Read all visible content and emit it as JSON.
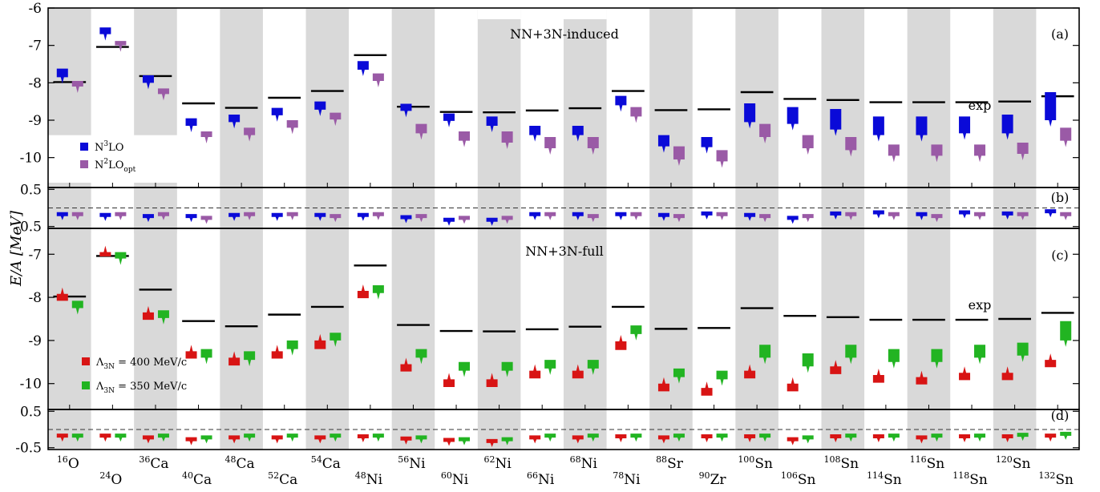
{
  "ylabel": "E/A  [MeV]",
  "nuclei": [
    {
      "mass": "16",
      "sym": "O"
    },
    {
      "mass": "24",
      "sym": "O"
    },
    {
      "mass": "36",
      "sym": "Ca"
    },
    {
      "mass": "40",
      "sym": "Ca"
    },
    {
      "mass": "48",
      "sym": "Ca"
    },
    {
      "mass": "52",
      "sym": "Ca"
    },
    {
      "mass": "54",
      "sym": "Ca"
    },
    {
      "mass": "48",
      "sym": "Ni"
    },
    {
      "mass": "56",
      "sym": "Ni"
    },
    {
      "mass": "60",
      "sym": "Ni"
    },
    {
      "mass": "62",
      "sym": "Ni"
    },
    {
      "mass": "66",
      "sym": "Ni"
    },
    {
      "mass": "68",
      "sym": "Ni"
    },
    {
      "mass": "78",
      "sym": "Ni"
    },
    {
      "mass": "88",
      "sym": "Sr"
    },
    {
      "mass": "90",
      "sym": "Zr"
    },
    {
      "mass": "100",
      "sym": "Sn"
    },
    {
      "mass": "106",
      "sym": "Sn"
    },
    {
      "mass": "108",
      "sym": "Sn"
    },
    {
      "mass": "114",
      "sym": "Sn"
    },
    {
      "mass": "116",
      "sym": "Sn"
    },
    {
      "mass": "118",
      "sym": "Sn"
    },
    {
      "mass": "120",
      "sym": "Sn"
    },
    {
      "mass": "132",
      "sym": "Sn"
    }
  ],
  "exp": [
    -7.98,
    -7.04,
    -7.82,
    -8.55,
    -8.67,
    -8.4,
    -8.22,
    -7.26,
    -8.64,
    -8.78,
    -8.79,
    -8.74,
    -8.68,
    -8.22,
    -8.73,
    -8.71,
    -8.25,
    -8.43,
    -8.46,
    -8.52,
    -8.52,
    -8.52,
    -8.5,
    -8.36
  ],
  "colors": {
    "n3lo": "#0a0ad8",
    "n2lo": "#9a5aa6",
    "red": "#d81414",
    "green": "#22b422",
    "shade": "#d9d9d9"
  },
  "panels": {
    "a": {
      "tag": "(a)",
      "title": "NN+3N-induced",
      "exp_label": "exp",
      "ymin": -10.8,
      "ymax": -6.0,
      "ticks": [
        "-6",
        "-7",
        "-8",
        "-9",
        "-10"
      ]
    },
    "b": {
      "tag": "(b)",
      "ticks": [
        "0.5",
        "-0.5"
      ]
    },
    "c": {
      "tag": "(c)",
      "title": "NN+3N-full",
      "exp_label": "exp",
      "ymin": -10.6,
      "ymax": -6.4,
      "ticks": [
        "-7",
        "-8",
        "-9",
        "-10"
      ]
    },
    "d": {
      "tag": "(d)",
      "ticks": [
        "0.5",
        "-0.5"
      ]
    }
  },
  "chart_data": [
    {
      "type": "scatter",
      "panel": "(a)",
      "title": "NN+3N-induced",
      "ylabel": "E/A [MeV]",
      "ylim": [
        -10.8,
        -6.0
      ],
      "categories": [
        "16O",
        "24O",
        "36Ca",
        "40Ca",
        "48Ca",
        "52Ca",
        "54Ca",
        "48Ni",
        "56Ni",
        "60Ni",
        "62Ni",
        "66Ni",
        "68Ni",
        "78Ni",
        "88Sr",
        "90Zr",
        "100Sn",
        "106Sn",
        "108Sn",
        "114Sn",
        "116Sn",
        "118Sn",
        "120Sn",
        "132Sn"
      ],
      "series": [
        {
          "name": "N3LO",
          "top": [
            -7.62,
            -6.52,
            -7.8,
            -8.95,
            -8.85,
            -8.67,
            -8.5,
            -7.42,
            -8.56,
            -8.82,
            -8.9,
            -9.15,
            -9.15,
            -8.35,
            -9.4,
            -9.45,
            -8.55,
            -8.65,
            -8.7,
            -8.9,
            -8.9,
            -8.9,
            -8.85,
            -8.25
          ],
          "bottom": [
            -7.85,
            -6.7,
            -8.0,
            -9.15,
            -9.05,
            -8.87,
            -8.72,
            -7.65,
            -8.75,
            -9.02,
            -9.15,
            -9.4,
            -9.4,
            -8.6,
            -9.7,
            -9.72,
            -9.05,
            -9.1,
            -9.25,
            -9.4,
            -9.4,
            -9.35,
            -9.35,
            -9.0
          ]
        },
        {
          "name": "N2LOopt",
          "top": [
            -7.95,
            -6.88,
            -8.15,
            -9.3,
            -9.2,
            -9.0,
            -8.8,
            -7.75,
            -9.1,
            -9.3,
            -9.3,
            -9.45,
            -9.45,
            -8.65,
            -9.7,
            -9.8,
            -9.1,
            -9.4,
            -9.45,
            -9.65,
            -9.65,
            -9.65,
            -9.6,
            -9.2
          ],
          "bottom": [
            -8.1,
            -7.0,
            -8.3,
            -9.45,
            -9.4,
            -9.2,
            -8.98,
            -7.95,
            -9.35,
            -9.55,
            -9.6,
            -9.75,
            -9.75,
            -8.9,
            -10.05,
            -10.1,
            -9.45,
            -9.75,
            -9.8,
            -9.95,
            -9.95,
            -9.95,
            -9.9,
            -9.55
          ]
        },
        {
          "name": "exp",
          "values": [
            -7.98,
            -7.04,
            -7.82,
            -8.55,
            -8.67,
            -8.4,
            -8.22,
            -7.26,
            -8.64,
            -8.78,
            -8.79,
            -8.74,
            -8.68,
            -8.22,
            -8.73,
            -8.71,
            -8.25,
            -8.43,
            -8.46,
            -8.52,
            -8.52,
            -8.52,
            -8.5,
            -8.36
          ]
        }
      ]
    },
    {
      "type": "scatter",
      "panel": "(b)",
      "ylim": [
        -0.5,
        0.5
      ],
      "categories": [
        "16O",
        "24O",
        "36Ca",
        "40Ca",
        "48Ca",
        "52Ca",
        "54Ca",
        "48Ni",
        "56Ni",
        "60Ni",
        "62Ni",
        "66Ni",
        "68Ni",
        "78Ni",
        "88Sr",
        "90Zr",
        "100Sn",
        "106Sn",
        "108Sn",
        "114Sn",
        "116Sn",
        "118Sn",
        "120Sn",
        "132Sn"
      ],
      "series": [
        {
          "name": "N3LO",
          "values": [
            -0.2,
            -0.22,
            -0.25,
            -0.25,
            -0.22,
            -0.22,
            -0.22,
            -0.22,
            -0.28,
            -0.35,
            -0.35,
            -0.2,
            -0.2,
            -0.2,
            -0.22,
            -0.18,
            -0.22,
            -0.3,
            -0.18,
            -0.15,
            -0.2,
            -0.15,
            -0.18,
            -0.12
          ]
        },
        {
          "name": "N2LOopt",
          "values": [
            -0.2,
            -0.2,
            -0.2,
            -0.3,
            -0.2,
            -0.2,
            -0.25,
            -0.2,
            -0.25,
            -0.3,
            -0.3,
            -0.2,
            -0.25,
            -0.2,
            -0.25,
            -0.2,
            -0.25,
            -0.25,
            -0.2,
            -0.2,
            -0.25,
            -0.2,
            -0.2,
            -0.2
          ]
        }
      ]
    },
    {
      "type": "scatter",
      "panel": "(c)",
      "title": "NN+3N-full",
      "ylabel": "E/A [MeV]",
      "ylim": [
        -10.6,
        -6.4
      ],
      "categories": [
        "16O",
        "24O",
        "36Ca",
        "40Ca",
        "48Ca",
        "52Ca",
        "54Ca",
        "48Ni",
        "56Ni",
        "60Ni",
        "62Ni",
        "66Ni",
        "68Ni",
        "78Ni",
        "88Sr",
        "90Zr",
        "100Sn",
        "106Sn",
        "108Sn",
        "114Sn",
        "116Sn",
        "118Sn",
        "120Sn",
        "132Sn"
      ],
      "series": [
        {
          "name": "Λ3N = 400 MeV/c",
          "top": [
            -7.92,
            -6.95,
            -8.35,
            -9.25,
            -9.4,
            -9.25,
            -9.0,
            -7.85,
            -9.55,
            -9.9,
            -9.9,
            -9.7,
            -9.7,
            -9.02,
            -10.0,
            -10.1,
            -9.7,
            -10.0,
            -9.6,
            -9.8,
            -9.85,
            -9.75,
            -9.75,
            -9.45
          ],
          "bottom": [
            -8.08,
            -7.05,
            -8.52,
            -9.42,
            -9.58,
            -9.42,
            -9.2,
            -8.02,
            -9.72,
            -10.08,
            -10.08,
            -9.88,
            -9.88,
            -9.22,
            -10.18,
            -10.28,
            -9.88,
            -10.18,
            -9.78,
            -9.98,
            -10.02,
            -9.92,
            -9.92,
            -9.62
          ]
        },
        {
          "name": "Λ3N = 350 MeV/c",
          "top": [
            -8.08,
            -6.95,
            -8.3,
            -9.2,
            -9.25,
            -9.0,
            -8.82,
            -7.72,
            -9.2,
            -9.5,
            -9.5,
            -9.45,
            -9.45,
            -8.65,
            -9.65,
            -9.7,
            -9.1,
            -9.3,
            -9.1,
            -9.2,
            -9.2,
            -9.1,
            -9.05,
            -8.55
          ],
          "bottom": [
            -8.25,
            -7.1,
            -8.48,
            -9.4,
            -9.45,
            -9.2,
            -9.0,
            -7.9,
            -9.4,
            -9.7,
            -9.7,
            -9.65,
            -9.65,
            -8.85,
            -9.85,
            -9.9,
            -9.4,
            -9.6,
            -9.4,
            -9.5,
            -9.5,
            -9.4,
            -9.35,
            -9.0
          ]
        },
        {
          "name": "exp",
          "values": [
            -7.98,
            -7.04,
            -7.82,
            -8.55,
            -8.67,
            -8.4,
            -8.22,
            -7.26,
            -8.64,
            -8.78,
            -8.79,
            -8.74,
            -8.68,
            -8.22,
            -8.73,
            -8.71,
            -8.25,
            -8.43,
            -8.46,
            -8.52,
            -8.52,
            -8.52,
            -8.5,
            -8.36
          ]
        }
      ]
    },
    {
      "type": "scatter",
      "panel": "(d)",
      "ylim": [
        -0.5,
        0.5
      ],
      "categories": [
        "16O",
        "24O",
        "36Ca",
        "40Ca",
        "48Ca",
        "52Ca",
        "54Ca",
        "48Ni",
        "56Ni",
        "60Ni",
        "62Ni",
        "66Ni",
        "68Ni",
        "78Ni",
        "88Sr",
        "90Zr",
        "100Sn",
        "106Sn",
        "108Sn",
        "114Sn",
        "116Sn",
        "118Sn",
        "120Sn",
        "132Sn"
      ],
      "series": [
        {
          "name": "Λ3N = 400 MeV/c",
          "values": [
            -0.2,
            -0.2,
            -0.25,
            -0.3,
            -0.25,
            -0.25,
            -0.25,
            -0.22,
            -0.28,
            -0.32,
            -0.35,
            -0.25,
            -0.25,
            -0.22,
            -0.25,
            -0.22,
            -0.22,
            -0.3,
            -0.22,
            -0.22,
            -0.25,
            -0.22,
            -0.22,
            -0.2
          ]
        },
        {
          "name": "Λ3N = 350 MeV/c",
          "values": [
            -0.2,
            -0.2,
            -0.2,
            -0.25,
            -0.2,
            -0.2,
            -0.2,
            -0.2,
            -0.25,
            -0.3,
            -0.3,
            -0.2,
            -0.2,
            -0.2,
            -0.2,
            -0.2,
            -0.2,
            -0.25,
            -0.2,
            -0.2,
            -0.2,
            -0.2,
            -0.18,
            -0.15
          ]
        }
      ]
    }
  ],
  "legend_a": [
    {
      "label": "N",
      "sup": "3",
      "tail": "LO",
      "color_key": "n3lo"
    },
    {
      "label": "N",
      "sup": "2",
      "tail": "LO",
      "sub": "opt",
      "color_key": "n2lo"
    }
  ],
  "legend_c": [
    {
      "label": "Λ",
      "sub": "3N",
      "tail": " = 400 MeV/c",
      "color_key": "red"
    },
    {
      "label": "Λ",
      "sub": "3N",
      "tail": " = 350 MeV/c",
      "color_key": "green"
    }
  ]
}
